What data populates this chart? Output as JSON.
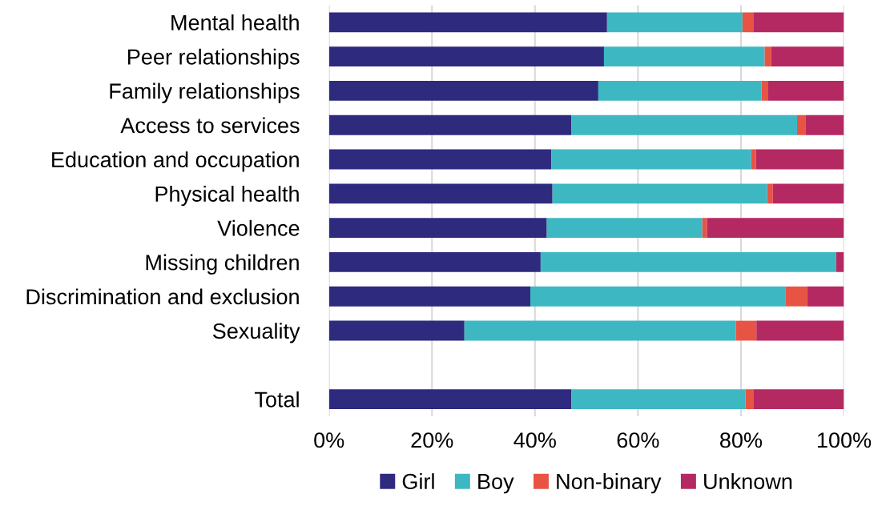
{
  "chart_data": {
    "type": "bar",
    "orientation": "horizontal",
    "stacked": true,
    "categories": [
      "Mental health",
      "Peer relationships",
      "Family relationships",
      "Access to services",
      "Education and occupation",
      "Physical health",
      "Violence",
      "Missing children",
      "Discrimination and exclusion",
      "Sexuality",
      null,
      "Total"
    ],
    "series": [
      {
        "name": "Girl",
        "color": "#2e2a7e",
        "values": [
          54.0,
          53.4,
          52.3,
          47.1,
          43.2,
          43.4,
          42.3,
          41.1,
          39.1,
          26.3,
          null,
          47.1
        ]
      },
      {
        "name": "Boy",
        "color": "#3db8c3",
        "values": [
          26.3,
          31.2,
          31.7,
          43.8,
          38.8,
          41.7,
          30.2,
          57.4,
          49.6,
          52.7,
          null,
          33.8
        ]
      },
      {
        "name": "Non-binary",
        "color": "#e85444",
        "values": [
          2.2,
          1.3,
          1.3,
          1.7,
          0.9,
          1.1,
          0.9,
          0,
          4.2,
          4.0,
          null,
          1.6
        ]
      },
      {
        "name": "Unknown",
        "color": "#b52962",
        "values": [
          17.5,
          14.1,
          14.7,
          7.4,
          17.1,
          13.8,
          26.6,
          1.5,
          7.1,
          17.0,
          null,
          17.5
        ]
      }
    ],
    "xlim": [
      0,
      100
    ],
    "xticks": [
      {
        "value": 0,
        "label": "0%"
      },
      {
        "value": 20,
        "label": "20%"
      },
      {
        "value": 40,
        "label": "40%"
      },
      {
        "value": 60,
        "label": "60%"
      },
      {
        "value": 80,
        "label": "80%"
      },
      {
        "value": 100,
        "label": "100%"
      }
    ],
    "grid": "x",
    "legend": "bottom"
  }
}
